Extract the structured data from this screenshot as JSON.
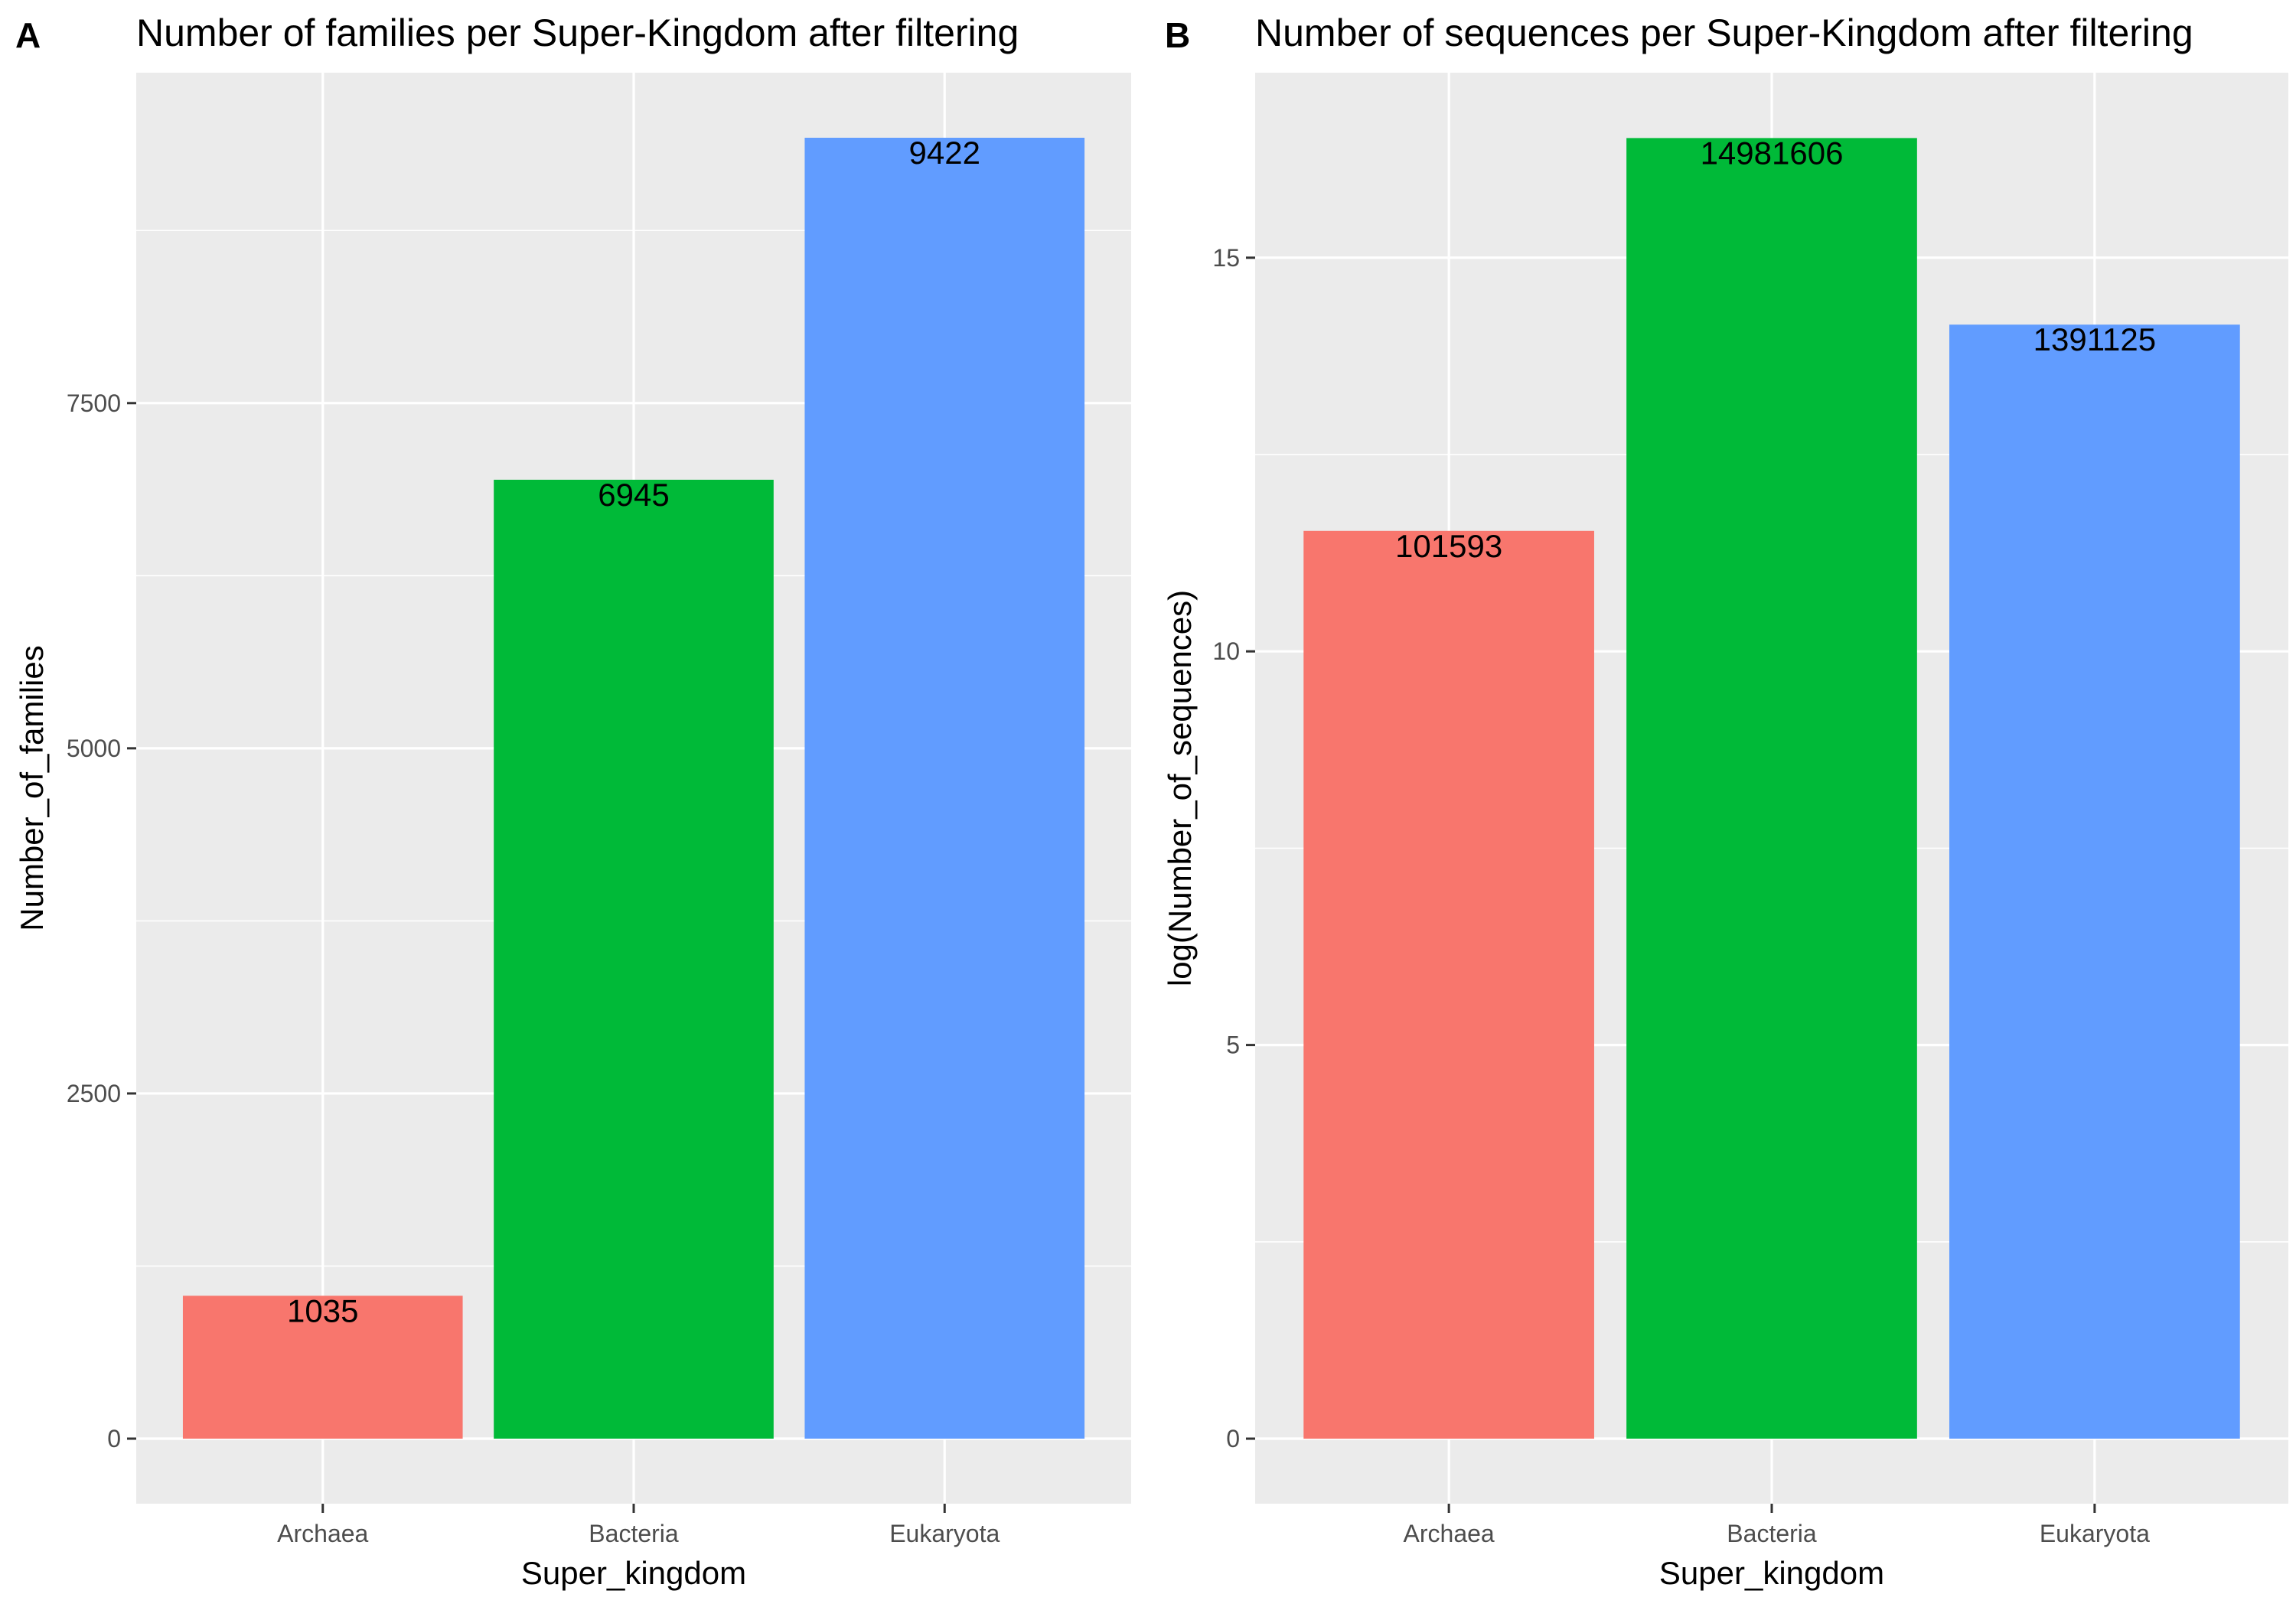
{
  "chart_data": [
    {
      "type": "bar",
      "panel": "A",
      "title": "Number of families per Super-Kingdom after filtering",
      "xlabel": "Super_kingdom",
      "ylabel": "Number_of_families",
      "categories": [
        "Archaea",
        "Bacteria",
        "Eukaryota"
      ],
      "values": [
        1035,
        6945,
        9422
      ],
      "data_labels": [
        "1035",
        "6945",
        "9422"
      ],
      "colors": [
        "#F8766D",
        "#00BA38",
        "#619CFF"
      ],
      "ylim": [
        -471.1,
        9893.1
      ],
      "yticks": [
        0,
        2500,
        5000,
        7500
      ],
      "ytick_labels": [
        "0",
        "2500",
        "5000",
        "7500"
      ],
      "yminor": [
        1250,
        3750,
        6250,
        8750
      ],
      "grid": true,
      "legend": "none"
    },
    {
      "type": "bar",
      "panel": "B",
      "title": "Number of sequences per Super-Kingdom after filtering",
      "xlabel": "Super_kingdom",
      "ylabel": "log(Number_of_sequences)",
      "categories": [
        "Archaea",
        "Bacteria",
        "Eukaryota"
      ],
      "values": [
        11.53,
        16.52,
        14.15
      ],
      "data_labels": [
        "101593",
        "14981606",
        "1391125"
      ],
      "colors": [
        "#F8766D",
        "#00BA38",
        "#619CFF"
      ],
      "ylim": [
        -0.826,
        17.35
      ],
      "yticks": [
        0,
        5,
        10,
        15
      ],
      "ytick_labels": [
        "0",
        "5",
        "10",
        "15"
      ],
      "yminor": [
        2.5,
        7.5,
        12.5
      ],
      "grid": true,
      "legend": "none"
    }
  ],
  "style": {
    "panel_background": "#EBEBEB",
    "grid_color": "#FFFFFF",
    "tick_color": "#333333"
  }
}
